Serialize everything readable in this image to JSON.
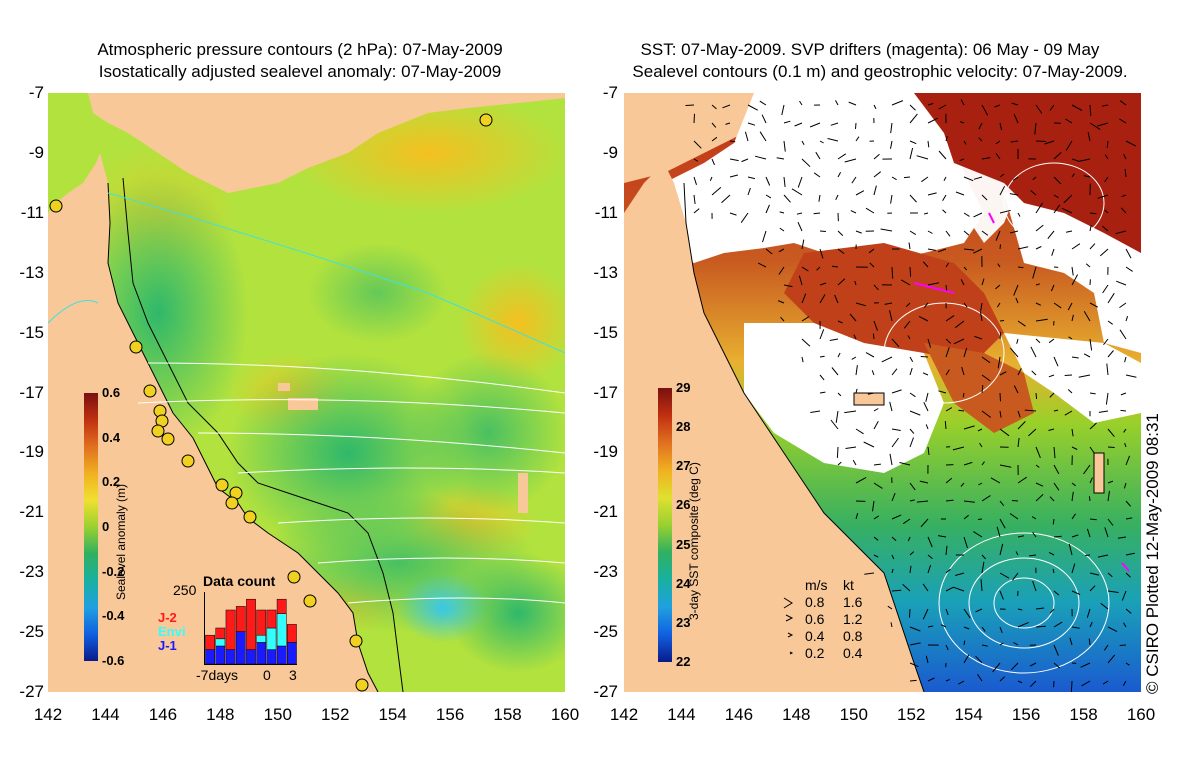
{
  "left_panel": {
    "title_line1": "Atmospheric pressure contours (2 hPa): 07-May-2009",
    "title_line2": "Isostatically adjusted sealevel anomaly: 07-May-2009",
    "colorbar": {
      "label": "Sealevel anomaly (m)",
      "ticks": [
        "0.6",
        "0.4",
        "0.2",
        "0",
        "-0.2",
        "-0.4",
        "-0.6"
      ]
    },
    "data_count": {
      "title": "Data count",
      "max_label": "250",
      "x_labels": [
        "-7days",
        "0",
        "3"
      ],
      "legend": [
        {
          "name": "J-2",
          "color": "#ff1a1a"
        },
        {
          "name": "Envi",
          "color": "#33ffff"
        },
        {
          "name": "J-1",
          "color": "#1a1aff"
        }
      ],
      "bars": [
        {
          "j1": 0.2,
          "envi": 0.0,
          "j2": 0.2
        },
        {
          "j1": 0.25,
          "envi": 0.1,
          "j2": 0.15
        },
        {
          "j1": 0.2,
          "envi": 0.0,
          "j2": 0.55
        },
        {
          "j1": 0.45,
          "envi": 0.0,
          "j2": 0.35
        },
        {
          "j1": 0.2,
          "envi": 0.0,
          "j2": 0.7
        },
        {
          "j1": 0.3,
          "envi": 0.1,
          "j2": 0.35
        },
        {
          "j1": 0.2,
          "envi": 0.3,
          "j2": 0.25
        },
        {
          "j1": 0.25,
          "envi": 0.45,
          "j2": 0.2
        },
        {
          "j1": 0.3,
          "envi": 0.0,
          "j2": 0.25
        }
      ]
    }
  },
  "right_panel": {
    "title_line1": "SST: 07-May-2009. SVP drifters (magenta): 06 May - 09 May",
    "title_line2": "Sealevel contours (0.1 m) and geostrophic velocity: 07-May-2009.",
    "colorbar": {
      "label": "3-day SST composite (deg C)",
      "ticks": [
        "29",
        "28",
        "27",
        "26",
        "25",
        "24",
        "23",
        "22"
      ]
    },
    "velocity_legend": {
      "header_ms": "m/s",
      "header_kt": "kt",
      "rows": [
        {
          "ms": "0.8",
          "kt": "1.6"
        },
        {
          "ms": "0.6",
          "kt": "1.2"
        },
        {
          "ms": "0.4",
          "kt": "0.8"
        },
        {
          "ms": "0.2",
          "kt": "0.4"
        }
      ]
    },
    "credit": "© CSIRO Plotted 12-May-2009 08:31"
  },
  "axes": {
    "y_ticks": [
      "-7",
      "-9",
      "-11",
      "-13",
      "-15",
      "-17",
      "-19",
      "-21",
      "-23",
      "-25",
      "-27"
    ],
    "x_ticks": [
      "142",
      "144",
      "146",
      "148",
      "150",
      "152",
      "154",
      "156",
      "158",
      "160"
    ]
  },
  "colors": {
    "land": "#f8c898",
    "sea_anomaly_base": "#aee03a",
    "sea_anomaly_high": "#f0d020",
    "sea_anomaly_low": "#3ec070",
    "cloud": "#ffffff",
    "sst_warm": "#c0321a",
    "sst_cool": "#1e7ad0",
    "drifter": "#ff00ff"
  }
}
